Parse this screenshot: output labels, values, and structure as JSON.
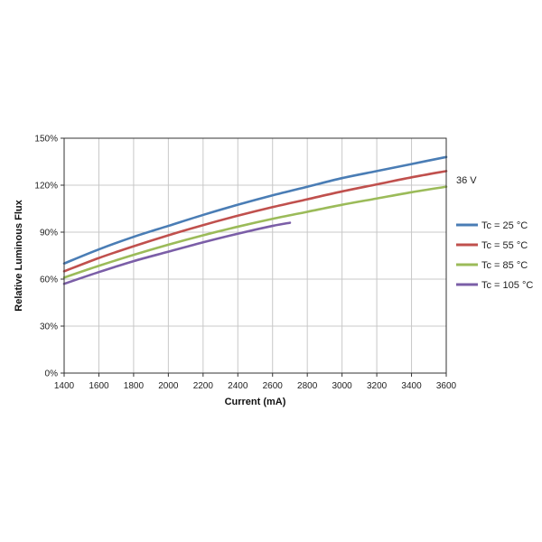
{
  "chart_data": {
    "type": "line",
    "xlabel": "Current (mA)",
    "ylabel": "Relative Luminous Flux",
    "xlim": [
      1400,
      3600
    ],
    "ylim": [
      0,
      150
    ],
    "x_ticks": [
      1400,
      1600,
      1800,
      2000,
      2200,
      2400,
      2600,
      2800,
      3000,
      3200,
      3400,
      3600
    ],
    "y_ticks": [
      0,
      30,
      60,
      90,
      120,
      150
    ],
    "y_tick_labels": [
      "0%",
      "30%",
      "60%",
      "90%",
      "120%",
      "150%"
    ],
    "grid": true,
    "legend_position": "right",
    "annotation": "36 V",
    "series": [
      {
        "name": "Tc = 25 °C",
        "color": "#4a7db5",
        "x": [
          1400,
          1600,
          1800,
          2000,
          2200,
          2400,
          2600,
          2800,
          3000,
          3200,
          3400,
          3600
        ],
        "y": [
          70,
          79,
          87,
          94,
          101,
          107.5,
          113.5,
          119,
          124.5,
          129,
          133.5,
          138
        ]
      },
      {
        "name": "Tc = 55 °C",
        "color": "#c0504d",
        "x": [
          1400,
          1600,
          1800,
          2000,
          2200,
          2400,
          2600,
          2800,
          3000,
          3200,
          3400,
          3600
        ],
        "y": [
          65,
          73.5,
          81,
          88,
          94.5,
          100.5,
          106,
          111,
          116,
          120.5,
          125,
          129
        ]
      },
      {
        "name": "Tc = 85 °C",
        "color": "#9bbb59",
        "x": [
          1400,
          1600,
          1800,
          2000,
          2200,
          2400,
          2600,
          2800,
          3000,
          3200,
          3400,
          3600
        ],
        "y": [
          61,
          68.5,
          75.5,
          82,
          88,
          93.5,
          98.5,
          103,
          107.5,
          111.5,
          115.5,
          119
        ]
      },
      {
        "name": "Tc = 105 °C",
        "color": "#7b5ea7",
        "x": [
          1400,
          1600,
          1800,
          2000,
          2200,
          2400,
          2600,
          2700
        ],
        "y": [
          57,
          64.5,
          71.5,
          77.5,
          83.5,
          89,
          94,
          96
        ]
      }
    ]
  }
}
